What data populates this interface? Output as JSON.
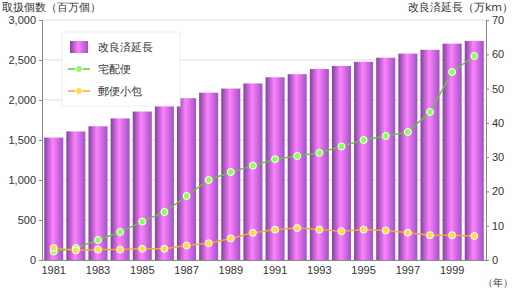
{
  "chart_data": {
    "type": "bar",
    "ylabel": "取扱個数（百万個）",
    "y2label": "改良済延長（万km）",
    "xlabel": "（年）",
    "categories": [
      "1981",
      null,
      "1983",
      null,
      "1985",
      null,
      "1987",
      null,
      "1989",
      null,
      "1991",
      null,
      "1993",
      null,
      "1995",
      null,
      "1997",
      null,
      "1999",
      null
    ],
    "series": [
      {
        "name": "改良済延長",
        "type": "bar",
        "axis": "y2",
        "color": "#a052c4",
        "values": [
          35.7,
          37.5,
          39.0,
          41.3,
          43.3,
          45.0,
          47.2,
          48.8,
          50.0,
          51.5,
          53.3,
          54.2,
          55.7,
          56.6,
          57.8,
          59.0,
          60.2,
          61.3,
          63.1,
          63.9
        ]
      },
      {
        "name": "宅配便",
        "type": "line",
        "color": "#6cbf4a",
        "marker": "o",
        "values": [
          107,
          150,
          250,
          350,
          480,
          600,
          800,
          1000,
          1100,
          1180,
          1260,
          1300,
          1340,
          1420,
          1500,
          1550,
          1600,
          1850,
          2350,
          2550
        ]
      },
      {
        "name": "郵便小包",
        "type": "line",
        "color": "#f2a540",
        "marker": "o",
        "values": [
          150,
          120,
          130,
          130,
          140,
          140,
          180,
          210,
          270,
          340,
          380,
          400,
          380,
          360,
          380,
          370,
          340,
          310,
          310,
          300
        ]
      }
    ],
    "ylim": [
      0,
      3000
    ],
    "yticks": [
      0,
      500,
      {
        "value": 1000,
        "label": "1,000"
      },
      {
        "value": 1500,
        "label": "1,500"
      },
      {
        "value": 2000,
        "label": "2,000"
      },
      {
        "value": 2500,
        "label": "2,500"
      },
      {
        "value": 3000,
        "label": "3,000"
      }
    ],
    "y2lim": [
      0,
      70
    ],
    "y2ticks": [
      0,
      10,
      20,
      30,
      40,
      50,
      60,
      70
    ],
    "grid": true,
    "legend": "upper left"
  }
}
